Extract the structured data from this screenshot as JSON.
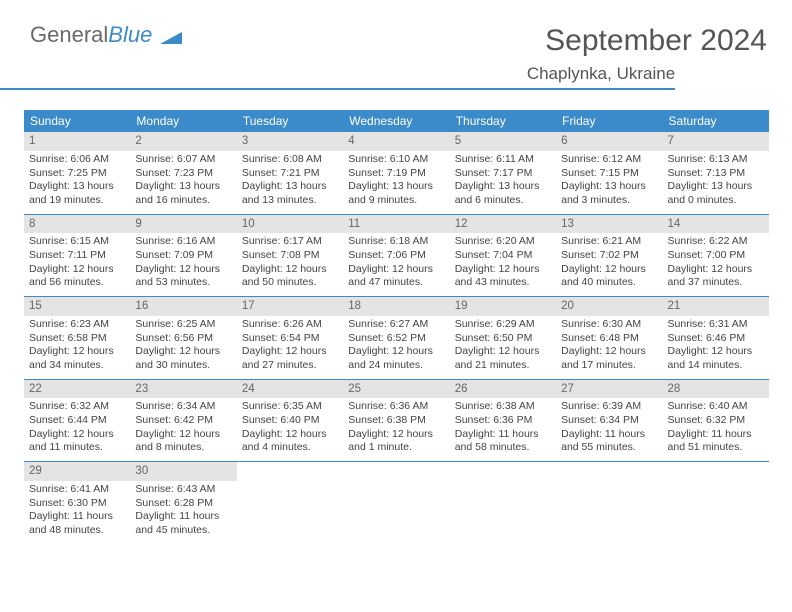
{
  "brand": {
    "part1": "General",
    "part2": "Blue"
  },
  "title": {
    "month": "September 2024",
    "location": "Chaplynka, Ukraine"
  },
  "colors": {
    "accent": "#3b8bca",
    "dayHeaderBg": "#e4e4e4",
    "text": "#444444",
    "background": "#ffffff"
  },
  "typography": {
    "base_font_size_pt": 10.5,
    "title_font_size_pt": 30
  },
  "dayNames": [
    "Sunday",
    "Monday",
    "Tuesday",
    "Wednesday",
    "Thursday",
    "Friday",
    "Saturday"
  ],
  "weeks": [
    [
      {
        "n": "1",
        "sr": "6:06 AM",
        "ss": "7:25 PM",
        "dl": "13 hours and 19 minutes."
      },
      {
        "n": "2",
        "sr": "6:07 AM",
        "ss": "7:23 PM",
        "dl": "13 hours and 16 minutes."
      },
      {
        "n": "3",
        "sr": "6:08 AM",
        "ss": "7:21 PM",
        "dl": "13 hours and 13 minutes."
      },
      {
        "n": "4",
        "sr": "6:10 AM",
        "ss": "7:19 PM",
        "dl": "13 hours and 9 minutes."
      },
      {
        "n": "5",
        "sr": "6:11 AM",
        "ss": "7:17 PM",
        "dl": "13 hours and 6 minutes."
      },
      {
        "n": "6",
        "sr": "6:12 AM",
        "ss": "7:15 PM",
        "dl": "13 hours and 3 minutes."
      },
      {
        "n": "7",
        "sr": "6:13 AM",
        "ss": "7:13 PM",
        "dl": "13 hours and 0 minutes."
      }
    ],
    [
      {
        "n": "8",
        "sr": "6:15 AM",
        "ss": "7:11 PM",
        "dl": "12 hours and 56 minutes."
      },
      {
        "n": "9",
        "sr": "6:16 AM",
        "ss": "7:09 PM",
        "dl": "12 hours and 53 minutes."
      },
      {
        "n": "10",
        "sr": "6:17 AM",
        "ss": "7:08 PM",
        "dl": "12 hours and 50 minutes."
      },
      {
        "n": "11",
        "sr": "6:18 AM",
        "ss": "7:06 PM",
        "dl": "12 hours and 47 minutes."
      },
      {
        "n": "12",
        "sr": "6:20 AM",
        "ss": "7:04 PM",
        "dl": "12 hours and 43 minutes."
      },
      {
        "n": "13",
        "sr": "6:21 AM",
        "ss": "7:02 PM",
        "dl": "12 hours and 40 minutes."
      },
      {
        "n": "14",
        "sr": "6:22 AM",
        "ss": "7:00 PM",
        "dl": "12 hours and 37 minutes."
      }
    ],
    [
      {
        "n": "15",
        "sr": "6:23 AM",
        "ss": "6:58 PM",
        "dl": "12 hours and 34 minutes."
      },
      {
        "n": "16",
        "sr": "6:25 AM",
        "ss": "6:56 PM",
        "dl": "12 hours and 30 minutes."
      },
      {
        "n": "17",
        "sr": "6:26 AM",
        "ss": "6:54 PM",
        "dl": "12 hours and 27 minutes."
      },
      {
        "n": "18",
        "sr": "6:27 AM",
        "ss": "6:52 PM",
        "dl": "12 hours and 24 minutes."
      },
      {
        "n": "19",
        "sr": "6:29 AM",
        "ss": "6:50 PM",
        "dl": "12 hours and 21 minutes."
      },
      {
        "n": "20",
        "sr": "6:30 AM",
        "ss": "6:48 PM",
        "dl": "12 hours and 17 minutes."
      },
      {
        "n": "21",
        "sr": "6:31 AM",
        "ss": "6:46 PM",
        "dl": "12 hours and 14 minutes."
      }
    ],
    [
      {
        "n": "22",
        "sr": "6:32 AM",
        "ss": "6:44 PM",
        "dl": "12 hours and 11 minutes."
      },
      {
        "n": "23",
        "sr": "6:34 AM",
        "ss": "6:42 PM",
        "dl": "12 hours and 8 minutes."
      },
      {
        "n": "24",
        "sr": "6:35 AM",
        "ss": "6:40 PM",
        "dl": "12 hours and 4 minutes."
      },
      {
        "n": "25",
        "sr": "6:36 AM",
        "ss": "6:38 PM",
        "dl": "12 hours and 1 minute."
      },
      {
        "n": "26",
        "sr": "6:38 AM",
        "ss": "6:36 PM",
        "dl": "11 hours and 58 minutes."
      },
      {
        "n": "27",
        "sr": "6:39 AM",
        "ss": "6:34 PM",
        "dl": "11 hours and 55 minutes."
      },
      {
        "n": "28",
        "sr": "6:40 AM",
        "ss": "6:32 PM",
        "dl": "11 hours and 51 minutes."
      }
    ],
    [
      {
        "n": "29",
        "sr": "6:41 AM",
        "ss": "6:30 PM",
        "dl": "11 hours and 48 minutes."
      },
      {
        "n": "30",
        "sr": "6:43 AM",
        "ss": "6:28 PM",
        "dl": "11 hours and 45 minutes."
      },
      null,
      null,
      null,
      null,
      null
    ]
  ],
  "labels": {
    "sunrise": "Sunrise:",
    "sunset": "Sunset:",
    "daylight": "Daylight:"
  }
}
